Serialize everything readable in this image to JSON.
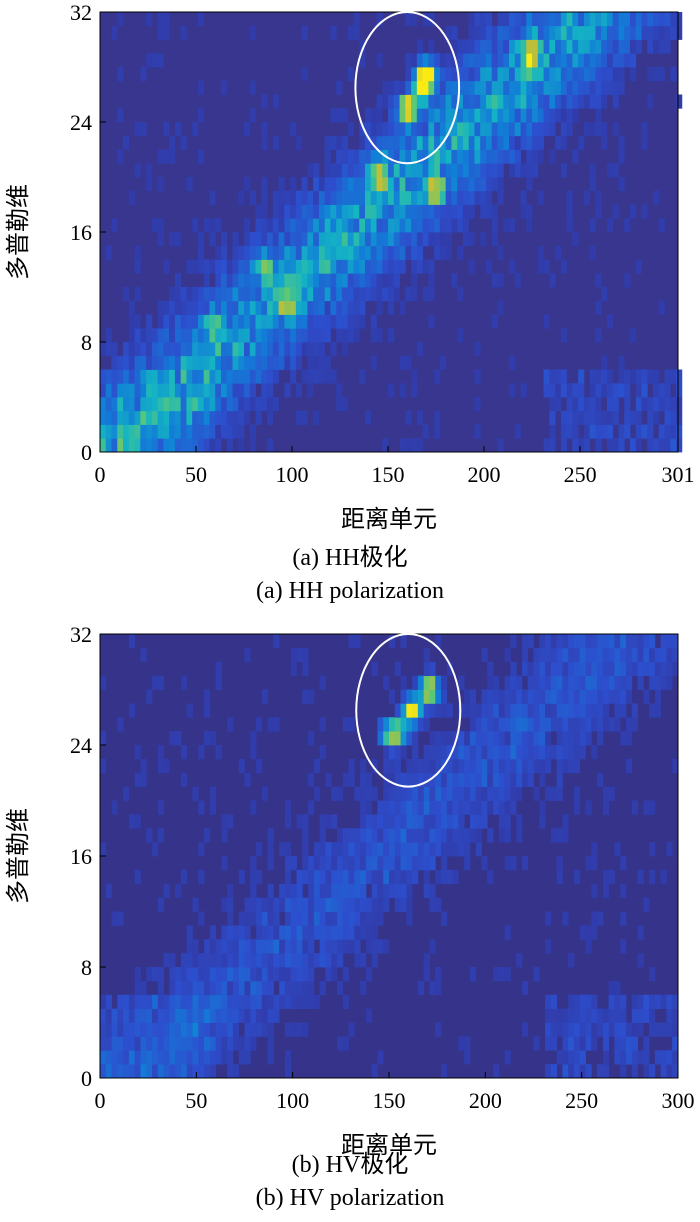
{
  "chart_data": [
    {
      "type": "heatmap",
      "title": "",
      "caption_cn": "(a) HH极化",
      "caption_en": "(a) HH polarization",
      "xlabel": "距离单元",
      "ylabel": "多普勒维",
      "xlim": [
        0,
        301
      ],
      "ylim": [
        0,
        32
      ],
      "x_ticks": [
        "0",
        "50",
        "100",
        "150",
        "200",
        "250",
        "301"
      ],
      "x_tick_values": [
        0,
        50,
        100,
        150,
        200,
        250,
        301
      ],
      "y_ticks": [
        "0",
        "8",
        "16",
        "24",
        "32"
      ],
      "y_tick_values": [
        0,
        8,
        16,
        24,
        32
      ],
      "colormap": "parula",
      "background_color": "#38368f",
      "band_trend": {
        "start": [
          20,
          2
        ],
        "end": [
          250,
          31
        ],
        "description": "diagonal energy band from low Doppler at small range to high Doppler at large range"
      },
      "hotspots": [
        {
          "x": 170,
          "y": 27.5,
          "level": "high"
        },
        {
          "x": 168,
          "y": 26.5,
          "level": "high"
        },
        {
          "x": 160,
          "y": 25.0,
          "level": "high"
        },
        {
          "x": 175,
          "y": 19.0,
          "level": "medium"
        },
        {
          "x": 145,
          "y": 20.0,
          "level": "medium"
        },
        {
          "x": 225,
          "y": 29.0,
          "level": "medium"
        },
        {
          "x": 97,
          "y": 11.0,
          "level": "medium"
        },
        {
          "x": 60,
          "y": 9.0,
          "level": "low"
        },
        {
          "x": 85,
          "y": 13.5,
          "level": "low"
        }
      ],
      "annotation": {
        "shape": "ellipse",
        "center": [
          160,
          26.5
        ],
        "radii": [
          27,
          5.5
        ],
        "color": "#ffffff"
      }
    },
    {
      "type": "heatmap",
      "title": "",
      "caption_cn": "(b) HV极化",
      "caption_en": "(b) HV polarization",
      "xlabel": "距离单元",
      "ylabel": "多普勒维",
      "xlim": [
        0,
        300
      ],
      "ylim": [
        0,
        32
      ],
      "x_ticks": [
        "0",
        "50",
        "100",
        "150",
        "200",
        "250",
        "300"
      ],
      "x_tick_values": [
        0,
        50,
        100,
        150,
        200,
        250,
        300
      ],
      "y_ticks": [
        "0",
        "8",
        "16",
        "24",
        "32"
      ],
      "y_tick_values": [
        0,
        8,
        16,
        24,
        32
      ],
      "colormap": "parula",
      "background_color": "#35338a",
      "band_trend": {
        "start": [
          40,
          3
        ],
        "end": [
          260,
          30
        ],
        "description": "faint diagonal band, weaker than HH"
      },
      "hotspots": [
        {
          "x": 171,
          "y": 28.0,
          "level": "high"
        },
        {
          "x": 162,
          "y": 26.5,
          "level": "high"
        },
        {
          "x": 155,
          "y": 25.0,
          "level": "medium"
        },
        {
          "x": 150,
          "y": 24.8,
          "level": "medium"
        }
      ],
      "annotation": {
        "shape": "ellipse",
        "center": [
          160,
          26.5
        ],
        "radii": [
          27,
          5.5
        ],
        "color": "#ffffff"
      }
    }
  ]
}
